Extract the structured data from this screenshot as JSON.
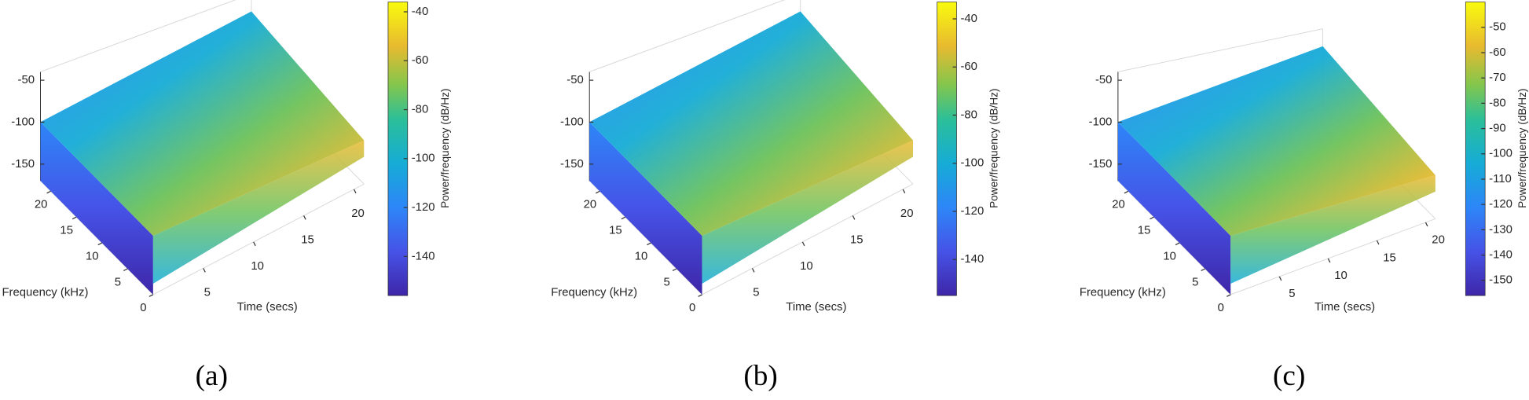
{
  "chart_data": [
    {
      "type": "surface",
      "caption": "(a)",
      "xlabel": "Time (secs)",
      "ylabel": "Frequency (kHz)",
      "colorbar_label": "Power/frequency (dB/Hz)",
      "xlim": [
        0,
        21
      ],
      "xticks": [
        5,
        10,
        15,
        20
      ],
      "ylim": [
        0,
        22
      ],
      "yticks": [
        0,
        5,
        10,
        15,
        20
      ],
      "zlim": [
        -170,
        -40
      ],
      "zticks": [
        -150,
        -100,
        -50
      ],
      "clim": [
        -156,
        -36
      ],
      "cticks": [
        -140,
        -120,
        -100,
        -80,
        -60,
        -40
      ]
    },
    {
      "type": "surface",
      "caption": "(b)",
      "xlabel": "Time (secs)",
      "ylabel": "Frequency (kHz)",
      "colorbar_label": "Power/frequency (dB/Hz)",
      "xlim": [
        0,
        21
      ],
      "xticks": [
        5,
        10,
        15,
        20
      ],
      "ylim": [
        0,
        22
      ],
      "yticks": [
        0,
        5,
        10,
        15,
        20
      ],
      "zlim": [
        -170,
        -40
      ],
      "zticks": [
        -150,
        -100,
        -50
      ],
      "clim": [
        -155,
        -33
      ],
      "cticks": [
        -140,
        -120,
        -100,
        -80,
        -60,
        -40
      ]
    },
    {
      "type": "surface",
      "caption": "(c)",
      "xlabel": "Time (secs)",
      "ylabel": "Frequency (kHz)",
      "colorbar_label": "Power/frequency (dB/Hz)",
      "xlim": [
        0,
        21
      ],
      "xticks": [
        5,
        10,
        15,
        20
      ],
      "ylim": [
        0,
        22
      ],
      "yticks": [
        0,
        5,
        10,
        15,
        20
      ],
      "zlim": [
        -170,
        -40
      ],
      "zticks": [
        -150,
        -100,
        -50
      ],
      "clim": [
        -156,
        -40
      ],
      "cticks": [
        -150,
        -140,
        -130,
        -120,
        -110,
        -100,
        -90,
        -80,
        -70,
        -60,
        -50
      ]
    }
  ]
}
